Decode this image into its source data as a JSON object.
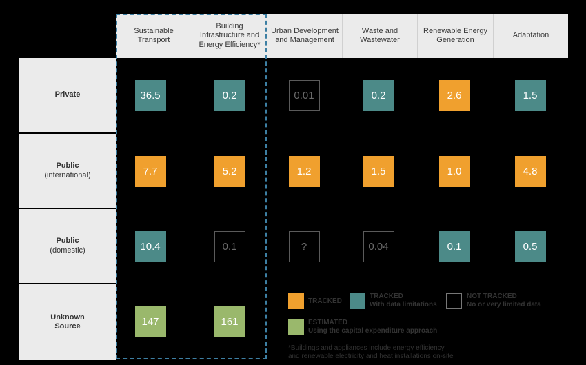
{
  "chart_data": {
    "type": "table",
    "columns": [
      "Sustainable Transport",
      "Building Infrastructure and Energy Efficiency*",
      "Urban Development and Management",
      "Waste and Wastewater",
      "Renewable Energy Generation",
      "Adaptation"
    ],
    "rows": [
      {
        "title": "Private",
        "subtitle": "",
        "cells": [
          {
            "value": "36.5",
            "status": "limited"
          },
          {
            "value": "0.2",
            "status": "limited"
          },
          {
            "value": "0.01",
            "status": "nottracked"
          },
          {
            "value": "0.2",
            "status": "limited"
          },
          {
            "value": "2.6",
            "status": "tracked"
          },
          {
            "value": "1.5",
            "status": "limited"
          }
        ]
      },
      {
        "title": "Public",
        "subtitle": "(international)",
        "cells": [
          {
            "value": "7.7",
            "status": "tracked"
          },
          {
            "value": "5.2",
            "status": "tracked"
          },
          {
            "value": "1.2",
            "status": "tracked"
          },
          {
            "value": "1.5",
            "status": "tracked"
          },
          {
            "value": "1.0",
            "status": "tracked"
          },
          {
            "value": "4.8",
            "status": "tracked"
          }
        ]
      },
      {
        "title": "Public",
        "subtitle": "(domestic)",
        "cells": [
          {
            "value": "10.4",
            "status": "limited"
          },
          {
            "value": "0.1",
            "status": "nottracked"
          },
          {
            "value": "?",
            "status": "nottracked"
          },
          {
            "value": "0.04",
            "status": "nottracked"
          },
          {
            "value": "0.1",
            "status": "limited"
          },
          {
            "value": "0.5",
            "status": "limited"
          }
        ]
      },
      {
        "title": "Unknown",
        "subtitle": "Source",
        "cells": [
          {
            "value": "147",
            "status": "estimated"
          },
          {
            "value": "161",
            "status": "estimated"
          }
        ]
      }
    ],
    "highlighted_column": "Building Infrastructure and Energy Efficiency*",
    "legend": [
      {
        "status": "tracked",
        "title": "TRACKED",
        "subtitle": ""
      },
      {
        "status": "limited",
        "title": "TRACKED",
        "subtitle": "With data limitations"
      },
      {
        "status": "nottracked",
        "title": "NOT TRACKED",
        "subtitle": "No or very limited data"
      },
      {
        "status": "estimated",
        "title": "ESTIMATED",
        "subtitle": "Using the capital expenditure approach"
      }
    ],
    "colors": {
      "tracked": "#f0a02e",
      "limited": "#4c8a88",
      "estimated": "#9ab86c",
      "nottracked": "#000000",
      "highlight_border": "#3d7fa3"
    }
  },
  "footnote": {
    "line1": "*Buildings and appliances include energy efficiency",
    "line2": "and renewable electricity and heat installations on-site"
  }
}
